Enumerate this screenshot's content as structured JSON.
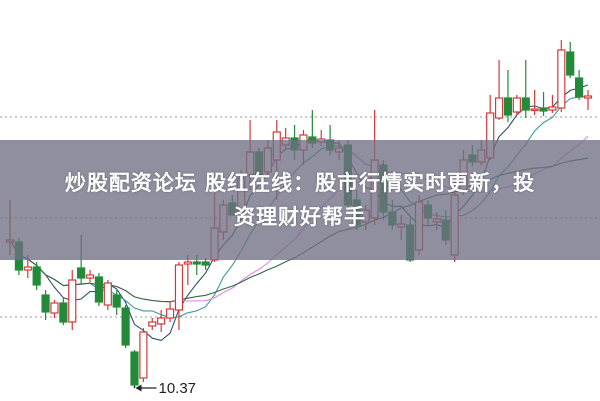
{
  "overlay": {
    "title_line1": "炒股配资论坛 股红在线：股市行情实时更新，投",
    "title_line2": "资理财好帮手"
  },
  "chart_data": {
    "type": "candlestick",
    "ylim": [
      10.24,
      14.25
    ],
    "gridlines": [
      13.08,
      12.07,
      11.08
    ],
    "grid": "dotted horizontal",
    "colors": {
      "up": "#d23a3a",
      "down": "#238a3a",
      "grid": "#999999",
      "ma_lines": [
        "#2f4f6f",
        "#3a9aa0",
        "#e58ae0",
        "#2e6b3f"
      ]
    },
    "moving_average_periods": [
      5,
      10,
      20,
      30
    ],
    "annotation": {
      "label": "10.37",
      "price": 10.37
    },
    "candles": [
      [
        11.83,
        12.25,
        11.7,
        11.85
      ],
      [
        11.83,
        11.87,
        11.5,
        11.55
      ],
      [
        11.55,
        11.7,
        11.47,
        11.58
      ],
      [
        11.58,
        11.63,
        11.35,
        11.4
      ],
      [
        11.3,
        11.35,
        11.05,
        11.13
      ],
      [
        11.12,
        11.25,
        11.07,
        11.22
      ],
      [
        11.22,
        11.27,
        11.0,
        11.03
      ],
      [
        11.03,
        11.55,
        10.95,
        11.45
      ],
      [
        11.57,
        11.9,
        11.4,
        11.47
      ],
      [
        11.47,
        11.55,
        11.43,
        11.5
      ],
      [
        11.48,
        11.52,
        11.19,
        11.23
      ],
      [
        11.2,
        11.45,
        11.15,
        11.42
      ],
      [
        11.3,
        11.35,
        11.1,
        11.18
      ],
      [
        11.17,
        11.2,
        10.77,
        10.8
      ],
      [
        10.73,
        10.75,
        10.37,
        10.4
      ],
      [
        10.47,
        10.97,
        10.43,
        10.93
      ],
      [
        10.99,
        11.07,
        10.95,
        11.03
      ],
      [
        11.01,
        11.15,
        10.93,
        11.07
      ],
      [
        11.07,
        11.23,
        11.03,
        11.16
      ],
      [
        11.15,
        11.63,
        10.95,
        11.6
      ],
      [
        11.61,
        11.7,
        11.4,
        11.63
      ],
      [
        11.63,
        11.7,
        11.5,
        11.61
      ],
      [
        11.63,
        11.67,
        11.55,
        11.6
      ],
      [
        11.65,
        12.35,
        11.63,
        11.97
      ],
      [
        11.93,
        12.25,
        11.85,
        12.2
      ],
      [
        12.22,
        12.3,
        12.1,
        12.1
      ],
      [
        12.13,
        12.55,
        12.1,
        12.47
      ],
      [
        12.5,
        13.05,
        12.35,
        12.73
      ],
      [
        12.73,
        12.77,
        12.5,
        12.5
      ],
      [
        12.53,
        12.85,
        12.47,
        12.77
      ],
      [
        12.65,
        13.05,
        12.25,
        12.93
      ],
      [
        12.8,
        12.97,
        12.75,
        12.87
      ],
      [
        12.87,
        13.0,
        12.65,
        12.75
      ],
      [
        12.75,
        12.95,
        12.6,
        12.9
      ],
      [
        12.88,
        13.15,
        12.77,
        12.82
      ],
      [
        12.83,
        12.95,
        12.79,
        12.86
      ],
      [
        12.85,
        13.0,
        12.7,
        12.75
      ],
      [
        12.73,
        12.85,
        12.65,
        12.77
      ],
      [
        12.8,
        12.85,
        12.15,
        12.2
      ],
      [
        12.25,
        12.35,
        11.95,
        12.0
      ],
      [
        12.03,
        12.2,
        11.95,
        12.15
      ],
      [
        12.07,
        13.15,
        12.0,
        12.65
      ],
      [
        12.6,
        12.65,
        12.05,
        12.13
      ],
      [
        12.13,
        12.25,
        11.95,
        12.0
      ],
      [
        11.98,
        12.1,
        11.85,
        12.01
      ],
      [
        12.0,
        12.07,
        11.63,
        11.65
      ],
      [
        11.75,
        12.3,
        11.7,
        12.23
      ],
      [
        12.2,
        12.25,
        12.0,
        12.07
      ],
      [
        12.03,
        12.13,
        11.95,
        12.06
      ],
      [
        12.05,
        12.15,
        11.8,
        11.85
      ],
      [
        11.7,
        12.45,
        11.63,
        12.3
      ],
      [
        12.35,
        12.75,
        12.3,
        12.65
      ],
      [
        12.7,
        12.8,
        12.59,
        12.63
      ],
      [
        12.63,
        12.85,
        12.6,
        12.75
      ],
      [
        12.67,
        13.3,
        12.65,
        13.12
      ],
      [
        13.07,
        13.65,
        13.05,
        13.27
      ],
      [
        13.27,
        13.55,
        13.03,
        13.1
      ],
      [
        13.13,
        13.3,
        13.1,
        13.27
      ],
      [
        13.27,
        13.65,
        13.07,
        13.15
      ],
      [
        13.15,
        13.35,
        13.1,
        13.16
      ],
      [
        13.17,
        13.33,
        13.09,
        13.14
      ],
      [
        13.15,
        13.3,
        13.12,
        13.18
      ],
      [
        13.17,
        13.85,
        13.13,
        13.75
      ],
      [
        13.73,
        13.83,
        13.47,
        13.5
      ],
      [
        13.47,
        13.55,
        13.25,
        13.28
      ],
      [
        13.27,
        13.35,
        13.15,
        13.29
      ]
    ]
  }
}
